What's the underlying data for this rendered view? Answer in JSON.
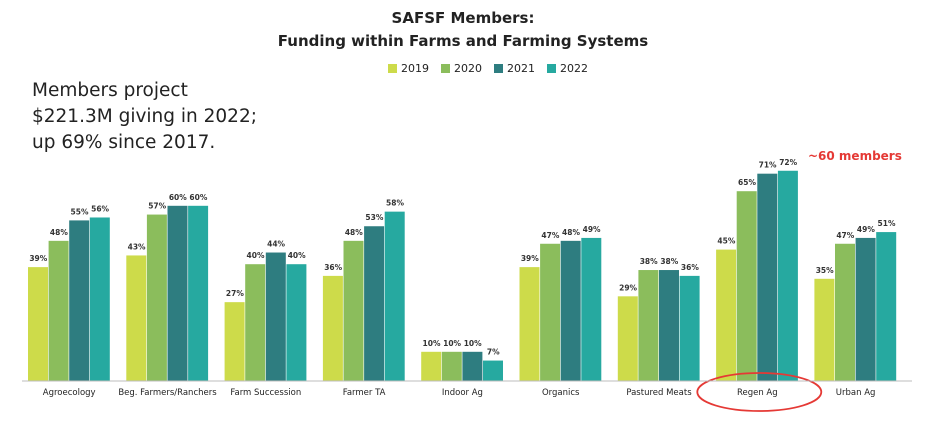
{
  "chart_data": {
    "type": "bar",
    "title": "SAFSF Members:",
    "subtitle": "Funding within Farms and Farming Systems",
    "categories": [
      "Agroecology",
      "Beg. Farmers/Ranchers",
      "Farm Succession",
      "Farmer TA",
      "Indoor Ag",
      "Organics",
      "Pastured Meats",
      "Regen Ag",
      "Urban Ag"
    ],
    "series": [
      {
        "name": "2019",
        "color": "#cddb4a",
        "values": [
          39,
          43,
          27,
          36,
          10,
          39,
          29,
          45,
          35
        ]
      },
      {
        "name": "2020",
        "color": "#8bbd5c",
        "values": [
          48,
          57,
          40,
          48,
          10,
          47,
          38,
          65,
          47
        ]
      },
      {
        "name": "2021",
        "color": "#2e7d80",
        "values": [
          55,
          60,
          44,
          53,
          10,
          48,
          38,
          71,
          49
        ]
      },
      {
        "name": "2022",
        "color": "#26a9a0",
        "values": [
          56,
          60,
          40,
          58,
          7,
          49,
          36,
          72,
          51
        ]
      }
    ],
    "value_suffix": "%",
    "ylim": [
      0,
      100
    ],
    "grid": false,
    "legend_position": "top-center",
    "highlighted_category": "Regen Ag",
    "highlight_color": "#e53935"
  },
  "note_lines": [
    "Members project",
    "$221.3M giving in 2022;",
    "up 69% since 2017."
  ],
  "annotation": "~60 members"
}
